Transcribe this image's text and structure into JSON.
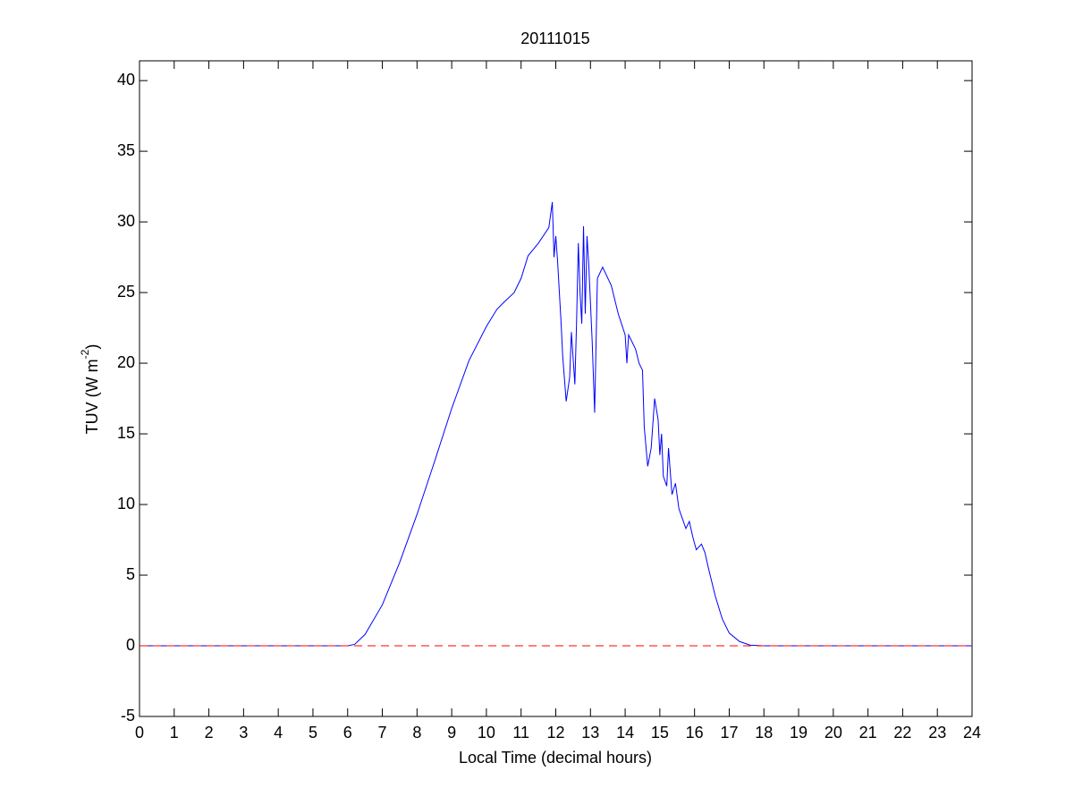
{
  "chart_data": {
    "type": "line",
    "title": "20111015",
    "xlabel": "Local Time (decimal hours)",
    "ylabel": {
      "text": "TUV (W m",
      "superscript": "-2",
      "suffix": ")"
    },
    "xlim": [
      0,
      24
    ],
    "xticks": [
      0,
      1,
      2,
      3,
      4,
      5,
      6,
      7,
      8,
      9,
      10,
      11,
      12,
      13,
      14,
      15,
      16,
      17,
      18,
      19,
      20,
      21,
      22,
      23,
      24
    ],
    "ylim": [
      -5,
      41.4
    ],
    "yticks": [
      -5,
      0,
      5,
      10,
      15,
      20,
      25,
      30,
      35,
      40
    ],
    "reference_line": {
      "y": 0,
      "color": "#ff0000",
      "style": "dashed"
    },
    "series": [
      {
        "color": "#0000ff",
        "x": [
          0,
          6,
          6.2,
          6.5,
          7,
          7.5,
          8,
          8.5,
          9,
          9.5,
          10,
          10.3,
          10.5,
          10.8,
          11,
          11.2,
          11.5,
          11.8,
          11.9,
          11.95,
          12,
          12.05,
          12.15,
          12.2,
          12.3,
          12.4,
          12.45,
          12.55,
          12.6,
          12.65,
          12.7,
          12.75,
          12.8,
          12.85,
          12.9,
          12.95,
          13.05,
          13.12,
          13.2,
          13.35,
          13.6,
          13.8,
          14,
          14.05,
          14.1,
          14.3,
          14.4,
          14.5,
          14.55,
          14.65,
          14.75,
          14.85,
          14.95,
          15,
          15.05,
          15.1,
          15.2,
          15.25,
          15.35,
          15.45,
          15.55,
          15.65,
          15.75,
          15.85,
          15.95,
          16.05,
          16.2,
          16.3,
          16.4,
          16.6,
          16.8,
          17,
          17.3,
          17.6,
          18,
          24
        ],
        "values": [
          0,
          0,
          0.1,
          0.8,
          2.9,
          5.9,
          9.3,
          13,
          16.8,
          20.2,
          22.6,
          23.8,
          24.3,
          25,
          26,
          27.6,
          28.5,
          29.6,
          31.4,
          27.5,
          29,
          27.3,
          23,
          20.5,
          17.3,
          19,
          22.2,
          18.5,
          23,
          28.5,
          25,
          22.8,
          29.7,
          23.5,
          29,
          27,
          21.5,
          16.5,
          26,
          26.8,
          25.5,
          23.5,
          22,
          20,
          22,
          21,
          20,
          19.5,
          15.5,
          12.7,
          14,
          17.5,
          16,
          13.5,
          15,
          12,
          11.3,
          14,
          10.7,
          11.5,
          9.7,
          9,
          8.3,
          8.8,
          7.7,
          6.8,
          7.2,
          6.6,
          5.5,
          3.5,
          1.9,
          0.9,
          0.3,
          0.05,
          0,
          0
        ]
      }
    ]
  }
}
